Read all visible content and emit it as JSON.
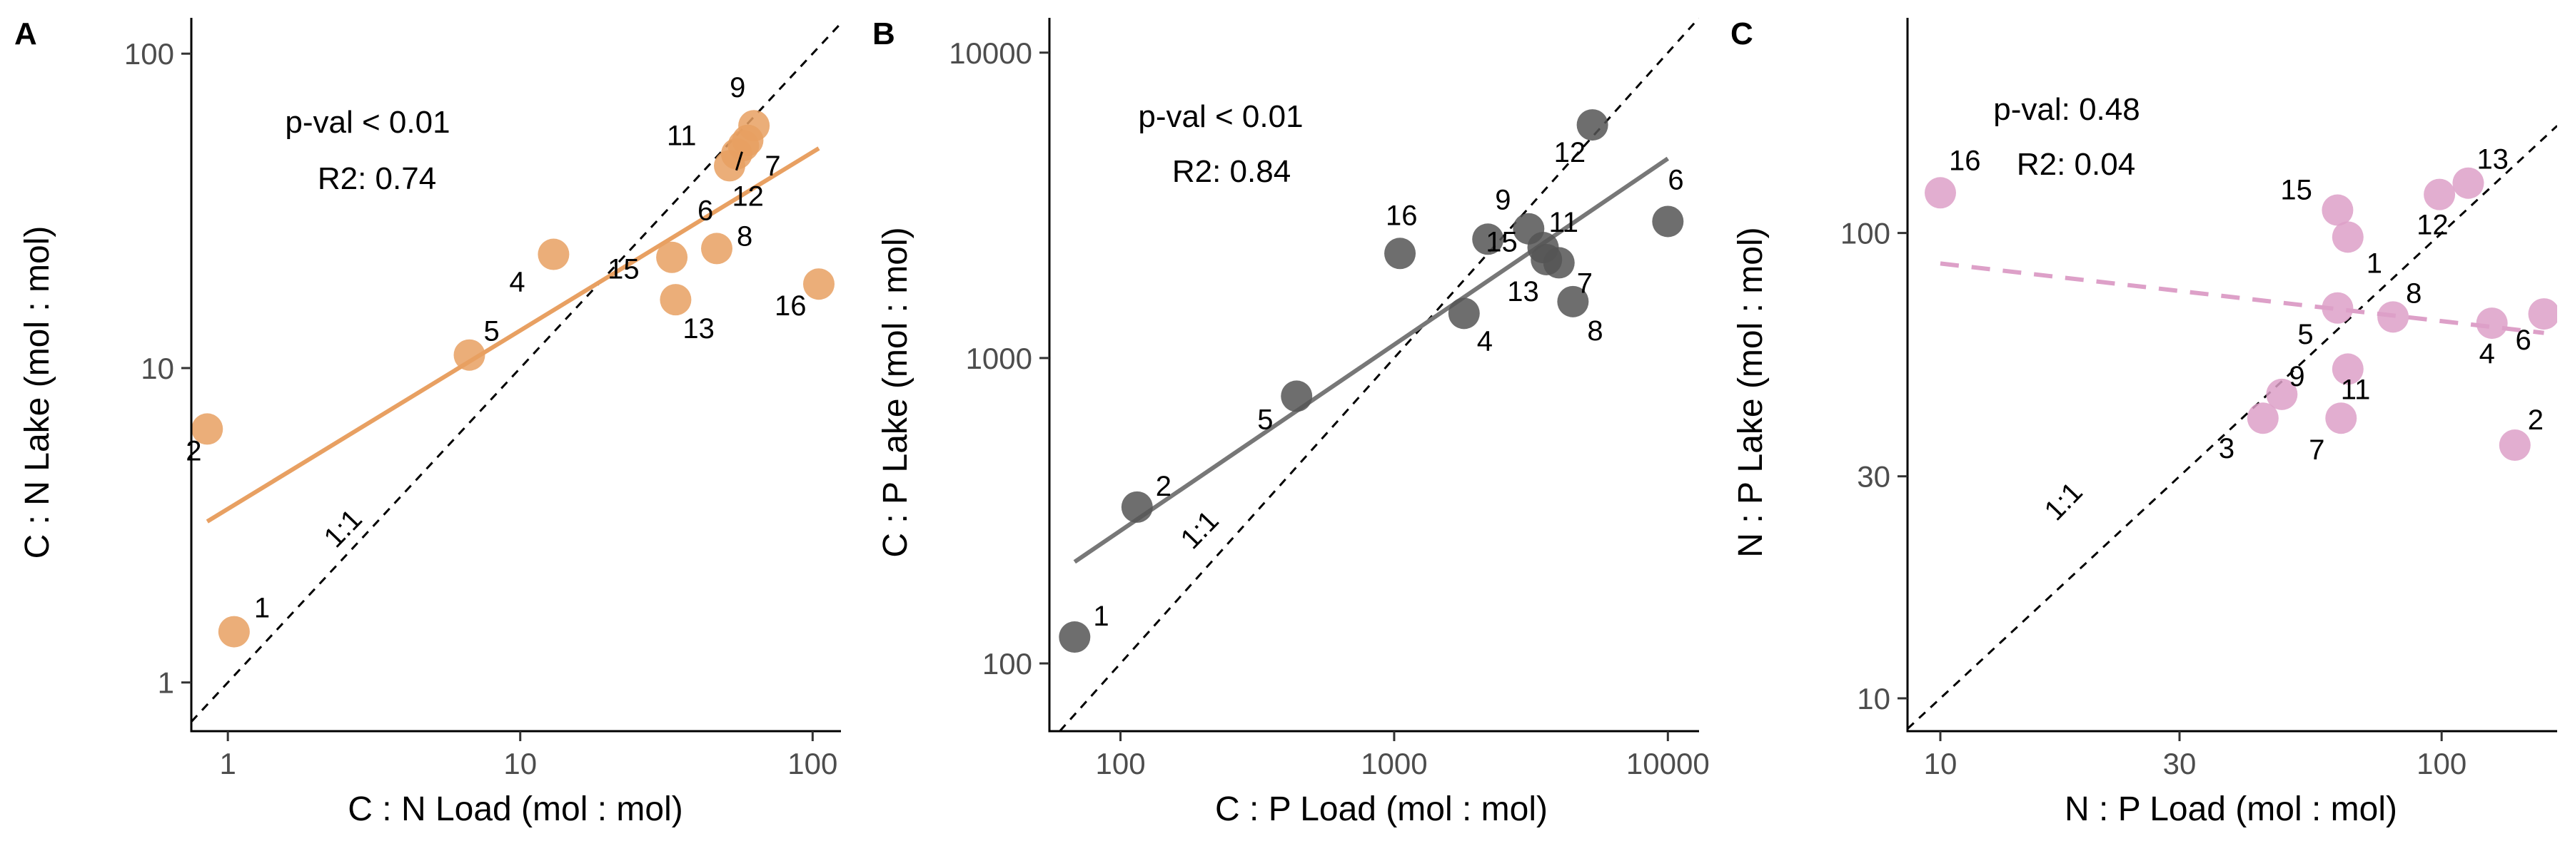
{
  "chart_data": [
    {
      "type": "scatter",
      "panel": "A",
      "xlabel": "C : N Load (mol : mol)",
      "ylabel": "C : N Lake (mol : mol)",
      "x_scale": "log",
      "y_scale": "log",
      "xlim": [
        0.75,
        125
      ],
      "ylim": [
        0.7,
        130
      ],
      "x_ticks": [
        1,
        10,
        100
      ],
      "x_tick_labels": [
        "1",
        "10",
        "100"
      ],
      "y_ticks": [
        1,
        10,
        100
      ],
      "y_tick_labels": [
        "1",
        "10",
        "100"
      ],
      "point_color": "#E8A062",
      "line_color": "#E8A062",
      "line_style": "solid",
      "identity_label": "1:1",
      "stats": [
        "p-val < 0.01",
        "R2: 0.74"
      ],
      "fit": {
        "x": [
          0.85,
          105
        ],
        "y": [
          3.25,
          50
        ]
      },
      "points": [
        {
          "label": "1",
          "x": 1.05,
          "y": 1.45
        },
        {
          "label": "2",
          "x": 0.85,
          "y": 6.4
        },
        {
          "label": "4",
          "x": 13,
          "y": 23
        },
        {
          "label": "5",
          "x": 6.7,
          "y": 11
        },
        {
          "label": "6",
          "x": 52,
          "y": 44
        },
        {
          "label": "7",
          "x": 58,
          "y": 51
        },
        {
          "label": "8",
          "x": 47,
          "y": 24
        },
        {
          "label": "9",
          "x": 63,
          "y": 59
        },
        {
          "label": "11",
          "x": 55,
          "y": 48
        },
        {
          "label": "12",
          "x": 60,
          "y": 53
        },
        {
          "label": "13",
          "x": 34,
          "y": 16.5
        },
        {
          "label": "15",
          "x": 33,
          "y": 22.5
        },
        {
          "label": "16",
          "x": 105,
          "y": 18.5
        }
      ]
    },
    {
      "type": "scatter",
      "panel": "B",
      "xlabel": "C : P Load (mol : mol)",
      "ylabel": "C : P Lake (mol : mol)",
      "x_scale": "log",
      "y_scale": "log",
      "xlim": [
        55,
        13000
      ],
      "ylim": [
        60,
        13000
      ],
      "x_ticks": [
        100,
        1000,
        10000
      ],
      "x_tick_labels": [
        "100",
        "1000",
        "10000"
      ],
      "y_ticks": [
        100,
        1000,
        10000
      ],
      "y_tick_labels": [
        "100",
        "1000",
        "10000"
      ],
      "point_color": "#555555",
      "line_color": "#777777",
      "line_style": "solid",
      "identity_label": "1:1",
      "stats": [
        "p-val < 0.01",
        "R2: 0.84"
      ],
      "fit": {
        "x": [
          68,
          10000
        ],
        "y": [
          215,
          4500
        ]
      },
      "points": [
        {
          "label": "1",
          "x": 68,
          "y": 122
        },
        {
          "label": "2",
          "x": 115,
          "y": 325
        },
        {
          "label": "4",
          "x": 1800,
          "y": 1400
        },
        {
          "label": "5",
          "x": 440,
          "y": 750
        },
        {
          "label": "6",
          "x": 10000,
          "y": 2800
        },
        {
          "label": "7",
          "x": 4000,
          "y": 2050
        },
        {
          "label": "8",
          "x": 4500,
          "y": 1530
        },
        {
          "label": "9",
          "x": 2200,
          "y": 2450
        },
        {
          "label": "11",
          "x": 3500,
          "y": 2300
        },
        {
          "label": "12",
          "x": 5300,
          "y": 5800
        },
        {
          "label": "13",
          "x": 3600,
          "y": 2100
        },
        {
          "label": "15",
          "x": 3100,
          "y": 2650
        },
        {
          "label": "16",
          "x": 1050,
          "y": 2200
        }
      ]
    },
    {
      "type": "scatter",
      "panel": "C",
      "xlabel": "N : P Load (mol : mol)",
      "ylabel": "N : P Lake (mol : mol)",
      "x_scale": "log",
      "y_scale": "log",
      "xlim": [
        8.6,
        170
      ],
      "ylim": [
        8.5,
        290
      ],
      "x_ticks": [
        10,
        30,
        100
      ],
      "x_tick_labels": [
        "10",
        "30",
        "100"
      ],
      "y_ticks": [
        10,
        30,
        100
      ],
      "y_tick_labels": [
        "10",
        "30",
        "100"
      ],
      "point_color": "#DDA0C8",
      "line_color": "#DDA0C8",
      "line_style": "dashed",
      "identity_label": "1:1",
      "stats": [
        "p-val: 0.48",
        "R2: 0.04"
      ],
      "fit": {
        "x": [
          10,
          160
        ],
        "y": [
          86,
          61
        ]
      },
      "points": [
        {
          "label": "16",
          "x": 10,
          "y": 122
        },
        {
          "label": "15",
          "x": 62,
          "y": 112
        },
        {
          "label": "13",
          "x": 113,
          "y": 128
        },
        {
          "label": "12",
          "x": 99,
          "y": 121
        },
        {
          "label": "1",
          "x": 65,
          "y": 98
        },
        {
          "label": "8",
          "x": 80,
          "y": 66
        },
        {
          "label": "5",
          "x": 62,
          "y": 69
        },
        {
          "label": "4",
          "x": 126,
          "y": 64
        },
        {
          "label": "6",
          "x": 160,
          "y": 67
        },
        {
          "label": "11",
          "x": 65,
          "y": 51
        },
        {
          "label": "9",
          "x": 48,
          "y": 45
        },
        {
          "label": "3",
          "x": 44,
          "y": 40
        },
        {
          "label": "7",
          "x": 63,
          "y": 40
        },
        {
          "label": "2",
          "x": 140,
          "y": 35
        }
      ]
    }
  ]
}
